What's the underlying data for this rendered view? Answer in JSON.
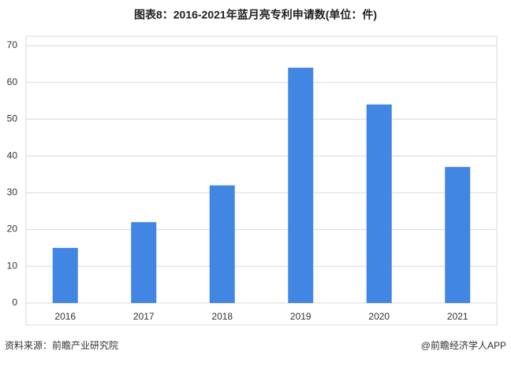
{
  "chart_data": {
    "type": "bar",
    "title": "图表8：2016-2021年蓝月亮专利申请数(单位：件)",
    "categories": [
      "2016",
      "2017",
      "2018",
      "2019",
      "2020",
      "2021"
    ],
    "values": [
      15,
      22,
      32,
      64,
      54,
      37
    ],
    "color": "#4286e3",
    "ylim": [
      0,
      70
    ],
    "yticks": [
      0,
      10,
      20,
      30,
      40,
      50,
      60,
      70
    ],
    "grid": true,
    "source": "资料来源：前瞻产业研究院",
    "credit": "@前瞻经济学人APP"
  }
}
